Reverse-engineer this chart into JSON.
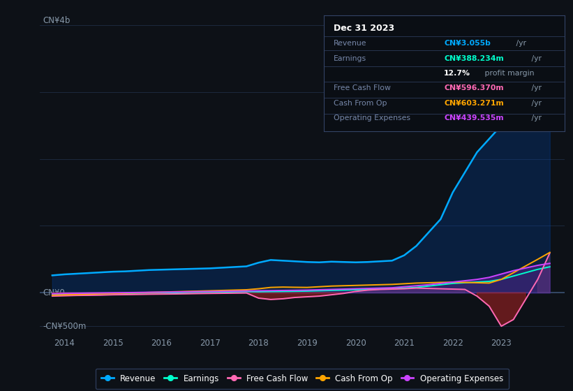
{
  "bg_color": "#0d1117",
  "plot_bg_color": "#0d1117",
  "info_box_bg": "#0a0e14",
  "title_date": "Dec 31 2023",
  "info_rows": [
    {
      "label": "Revenue",
      "value": "CN¥3.055b",
      "unit": " /yr",
      "value_color": "#00aaff"
    },
    {
      "label": "Earnings",
      "value": "CN¥388.234m",
      "unit": " /yr",
      "value_color": "#00ffcc"
    },
    {
      "label": "",
      "value": "12.7%",
      "unit": " profit margin",
      "value_color": "#ffffff"
    },
    {
      "label": "Free Cash Flow",
      "value": "CN¥596.370m",
      "unit": " /yr",
      "value_color": "#ff69b4"
    },
    {
      "label": "Cash From Op",
      "value": "CN¥603.271m",
      "unit": " /yr",
      "value_color": "#ffa500"
    },
    {
      "label": "Operating Expenses",
      "value": "CN¥439.535m",
      "unit": " /yr",
      "value_color": "#cc44ff"
    }
  ],
  "ylabel_top": "CN¥4b",
  "ylabel_zero": "CN¥0",
  "ylabel_neg": "-CN¥500m",
  "x_labels": [
    "2014",
    "2015",
    "2016",
    "2017",
    "2018",
    "2019",
    "2020",
    "2021",
    "2022",
    "2023"
  ],
  "legend": [
    {
      "label": "Revenue",
      "color": "#00aaff"
    },
    {
      "label": "Earnings",
      "color": "#00ffcc"
    },
    {
      "label": "Free Cash Flow",
      "color": "#ff69b4"
    },
    {
      "label": "Cash From Op",
      "color": "#ffa500"
    },
    {
      "label": "Operating Expenses",
      "color": "#cc44ff"
    }
  ],
  "ylim_min": -650,
  "ylim_max": 4200,
  "grid_color": "#1e2d45",
  "zero_line_color": "#3a5070",
  "revenue_color": "#00aaff",
  "earnings_color": "#00ffcc",
  "fcf_color": "#ff69b4",
  "cashop_color": "#ffa500",
  "opex_color": "#cc44ff",
  "revenue_fill": "#0044aa",
  "opex_fill": "#6622aa",
  "cashop_fill": "#223355",
  "fcf_neg_fill": "#aa2222",
  "fcf_pos_fill": "#884488"
}
